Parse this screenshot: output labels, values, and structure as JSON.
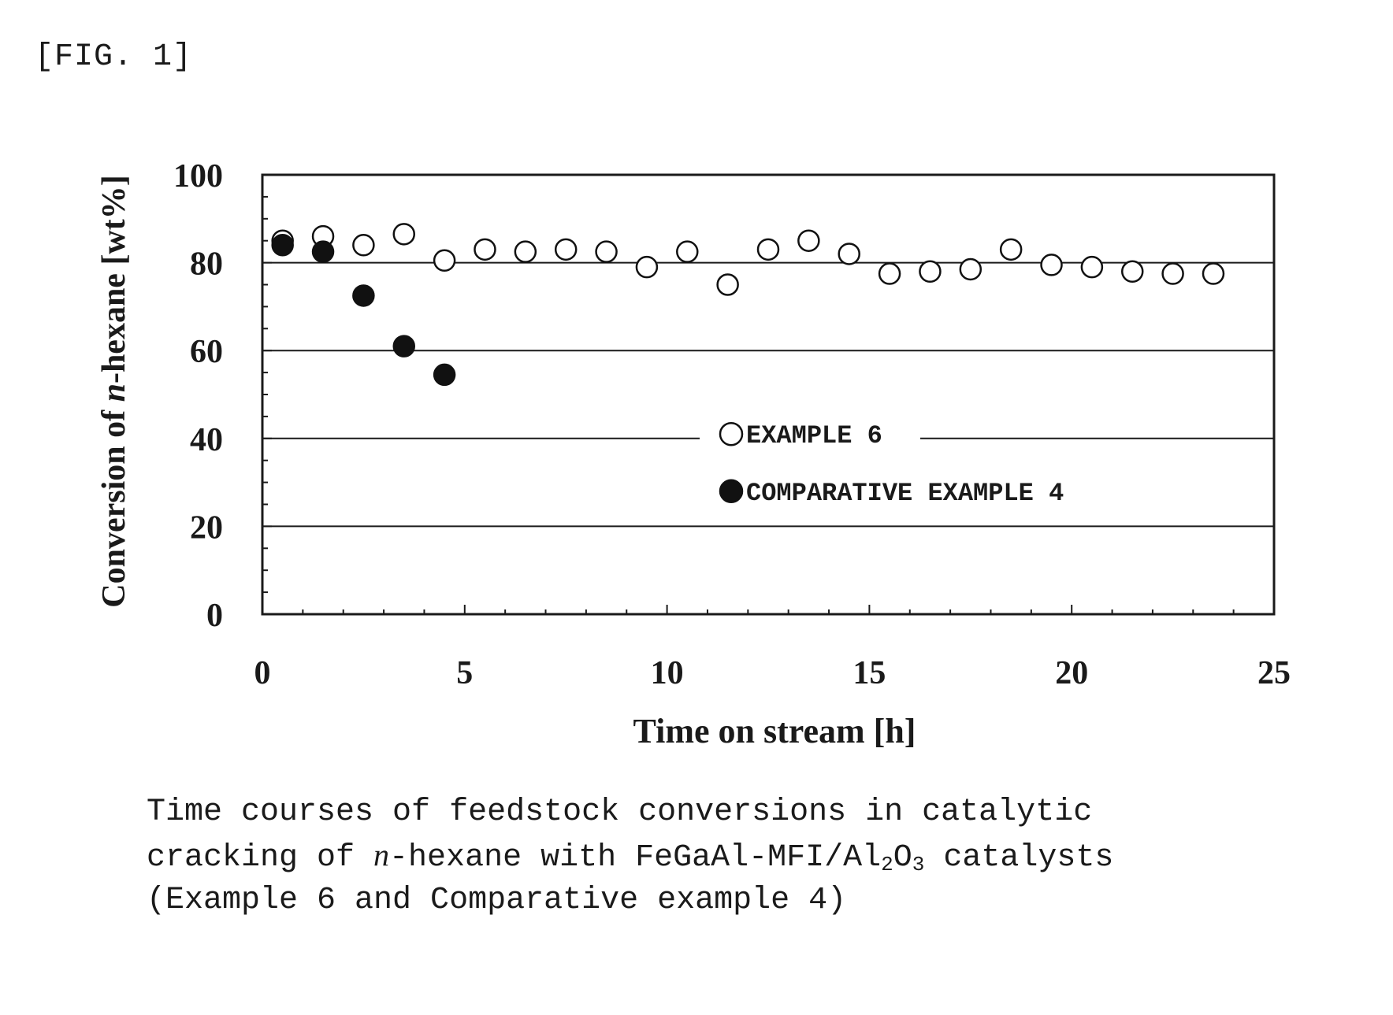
{
  "figure_label": "[FIG. 1]",
  "caption": {
    "line1": "Time courses of feedstock conversions in catalytic",
    "line2_pre": "cracking of ",
    "line2_italic": "n",
    "line2_mid": "-hexane with FeGaAl-MFI/Al",
    "line2_sub1": "2",
    "line2_o": "O",
    "line2_sub2": "3",
    "line2_post": " catalysts",
    "line3": "(Example 6 and Comparative example 4)"
  },
  "chart_data": {
    "type": "scatter",
    "title": "",
    "xlabel": "Time on stream [h]",
    "ylabel_pre": "Conversion of ",
    "ylabel_italic": "n",
    "ylabel_post": "-hexane [wt%]",
    "xlim": [
      0,
      25
    ],
    "ylim": [
      0,
      100
    ],
    "xticks": [
      "0",
      "5",
      "10",
      "15",
      "20",
      "25"
    ],
    "yticks": [
      "0",
      "20",
      "40",
      "60",
      "80",
      "100"
    ],
    "grid": "horizontal",
    "legend_position": "center-right",
    "series": [
      {
        "name": "EXAMPLE 6",
        "marker": "open-circle",
        "x": [
          0.5,
          1.5,
          2.5,
          3.5,
          4.5,
          5.5,
          6.5,
          7.5,
          8.5,
          9.5,
          10.5,
          11.5,
          12.5,
          13.5,
          14.5,
          15.5,
          16.5,
          17.5,
          18.5,
          19.5,
          20.5,
          21.5,
          22.5,
          23.5
        ],
        "y": [
          85,
          86,
          84,
          86.5,
          80.5,
          83,
          82.5,
          83,
          82.5,
          79,
          82.5,
          75,
          83,
          85,
          82,
          77.5,
          78,
          78.5,
          83,
          79.5,
          79,
          78,
          77.5,
          77.5
        ]
      },
      {
        "name": "COMPARATIVE EXAMPLE 4",
        "marker": "filled-circle",
        "x": [
          0.5,
          1.5,
          2.5,
          3.5,
          4.5
        ],
        "y": [
          84,
          82.5,
          72.5,
          61,
          54.5
        ]
      }
    ],
    "colors": {
      "axis": "#1a1a1a",
      "grid": "#1a1a1a",
      "marker": "#111111"
    }
  }
}
